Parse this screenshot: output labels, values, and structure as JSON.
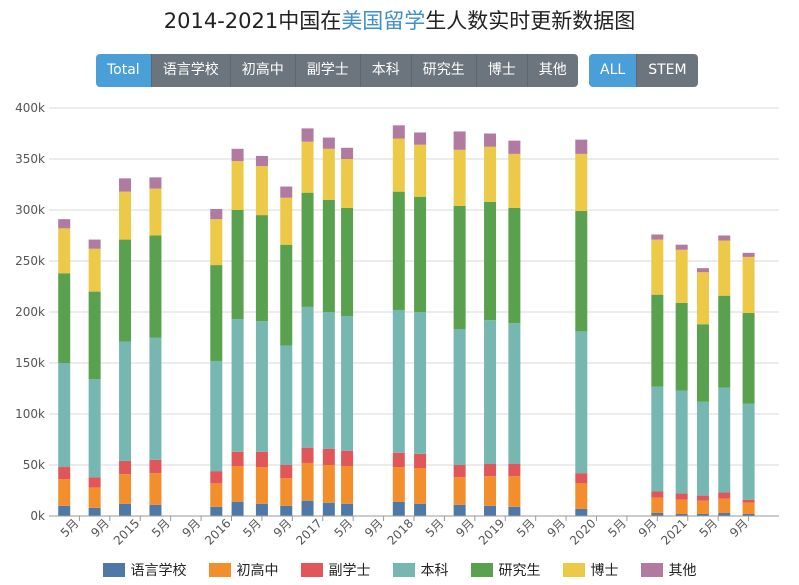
{
  "title": {
    "pre": "2014-2021中国在",
    "highlight": "美国留学",
    "post": "生人数实时更新数据图"
  },
  "level_buttons": [
    {
      "label": "Total",
      "active": true
    },
    {
      "label": "语言学校",
      "active": false
    },
    {
      "label": "初高中",
      "active": false
    },
    {
      "label": "副学士",
      "active": false
    },
    {
      "label": "本科",
      "active": false
    },
    {
      "label": "研究生",
      "active": false
    },
    {
      "label": "博士",
      "active": false
    },
    {
      "label": "其他",
      "active": false
    }
  ],
  "field_buttons": [
    {
      "label": "ALL",
      "active": true
    },
    {
      "label": "STEM",
      "active": false
    }
  ],
  "chart_data": {
    "type": "bar",
    "stacked": true,
    "ylim": [
      0,
      400000
    ],
    "yticks": [
      0,
      50000,
      100000,
      150000,
      200000,
      250000,
      300000,
      350000,
      400000
    ],
    "ytick_labels": [
      "0k",
      "50k",
      "100k",
      "150k",
      "200k",
      "250k",
      "300k",
      "350k",
      "400k"
    ],
    "x_slots": 24,
    "xticks": [
      {
        "slot": 1,
        "label": "5月"
      },
      {
        "slot": 2,
        "label": "9月"
      },
      {
        "slot": 3,
        "label": "2015"
      },
      {
        "slot": 4,
        "label": "5月"
      },
      {
        "slot": 5,
        "label": "9月"
      },
      {
        "slot": 6,
        "label": "2016"
      },
      {
        "slot": 7,
        "label": "5月"
      },
      {
        "slot": 8,
        "label": "9月"
      },
      {
        "slot": 9,
        "label": "2017"
      },
      {
        "slot": 10,
        "label": "5月"
      },
      {
        "slot": 11,
        "label": "9月"
      },
      {
        "slot": 12,
        "label": "2018"
      },
      {
        "slot": 13,
        "label": "5月"
      },
      {
        "slot": 14,
        "label": "9月"
      },
      {
        "slot": 15,
        "label": "2019"
      },
      {
        "slot": 16,
        "label": "5月"
      },
      {
        "slot": 17,
        "label": "9月"
      },
      {
        "slot": 18,
        "label": "2020"
      },
      {
        "slot": 19,
        "label": "5月"
      },
      {
        "slot": 20,
        "label": "9月"
      },
      {
        "slot": 21,
        "label": "2021"
      },
      {
        "slot": 22,
        "label": "5月"
      },
      {
        "slot": 23,
        "label": "9月"
      }
    ],
    "legend_position": "bottom",
    "grid": true,
    "series_colors": [
      "#4e79a7",
      "#f28e2b",
      "#e15759",
      "#76b7b2",
      "#59a14f",
      "#edc948",
      "#b07aa1"
    ],
    "series": [
      {
        "name": "语言学校"
      },
      {
        "name": "初高中"
      },
      {
        "name": "副学士"
      },
      {
        "name": "本科"
      },
      {
        "name": "研究生"
      },
      {
        "name": "博士"
      },
      {
        "name": "其他"
      }
    ],
    "bars": [
      {
        "x": 0.5,
        "values": [
          10000,
          26000,
          12000,
          102000,
          88000,
          44000,
          9000
        ]
      },
      {
        "x": 1.5,
        "values": [
          8000,
          20000,
          10000,
          96000,
          86000,
          42000,
          9000
        ]
      },
      {
        "x": 2.5,
        "values": [
          12000,
          29000,
          13000,
          117000,
          100000,
          47000,
          13000
        ]
      },
      {
        "x": 3.5,
        "values": [
          11000,
          31000,
          13000,
          120000,
          100000,
          46000,
          11000
        ]
      },
      {
        "x": 5.5,
        "values": [
          9000,
          23000,
          12000,
          108000,
          94000,
          45000,
          10000
        ]
      },
      {
        "x": 6.2,
        "values": [
          14000,
          35000,
          14000,
          130000,
          107000,
          48000,
          12000
        ]
      },
      {
        "x": 7.0,
        "values": [
          12000,
          36000,
          15000,
          128000,
          104000,
          48000,
          10000
        ]
      },
      {
        "x": 7.8,
        "values": [
          10000,
          27000,
          13000,
          117000,
          99000,
          46000,
          11000
        ]
      },
      {
        "x": 8.5,
        "values": [
          15000,
          37000,
          15000,
          138000,
          112000,
          50000,
          13000
        ]
      },
      {
        "x": 9.2,
        "values": [
          13000,
          37000,
          16000,
          134000,
          110000,
          50000,
          11000
        ]
      },
      {
        "x": 9.8,
        "values": [
          12000,
          37000,
          15000,
          132000,
          106000,
          48000,
          11000
        ]
      },
      {
        "x": 11.5,
        "values": [
          14000,
          34000,
          14000,
          140000,
          116000,
          52000,
          13000
        ]
      },
      {
        "x": 12.2,
        "values": [
          12000,
          35000,
          14000,
          139000,
          113000,
          51000,
          12000
        ]
      },
      {
        "x": 13.5,
        "values": [
          11000,
          27000,
          12000,
          133000,
          121000,
          55000,
          18000
        ]
      },
      {
        "x": 14.5,
        "values": [
          10000,
          29000,
          12000,
          141000,
          116000,
          54000,
          13000
        ]
      },
      {
        "x": 15.3,
        "values": [
          9000,
          30000,
          12000,
          138000,
          113000,
          53000,
          13000
        ]
      },
      {
        "x": 17.5,
        "values": [
          7000,
          25000,
          10000,
          139000,
          118000,
          56000,
          14000
        ]
      },
      {
        "x": 20.0,
        "values": [
          3000,
          15000,
          6000,
          103000,
          90000,
          54000,
          5000
        ]
      },
      {
        "x": 20.8,
        "values": [
          2000,
          14000,
          6000,
          101000,
          86000,
          52000,
          5000
        ]
      },
      {
        "x": 21.5,
        "values": [
          2000,
          13000,
          5000,
          92000,
          76000,
          51000,
          4000
        ]
      },
      {
        "x": 22.2,
        "values": [
          3000,
          14000,
          6000,
          103000,
          90000,
          54000,
          5000
        ]
      },
      {
        "x": 23.0,
        "values": [
          2000,
          11000,
          3000,
          94000,
          89000,
          55000,
          4000
        ]
      }
    ]
  }
}
